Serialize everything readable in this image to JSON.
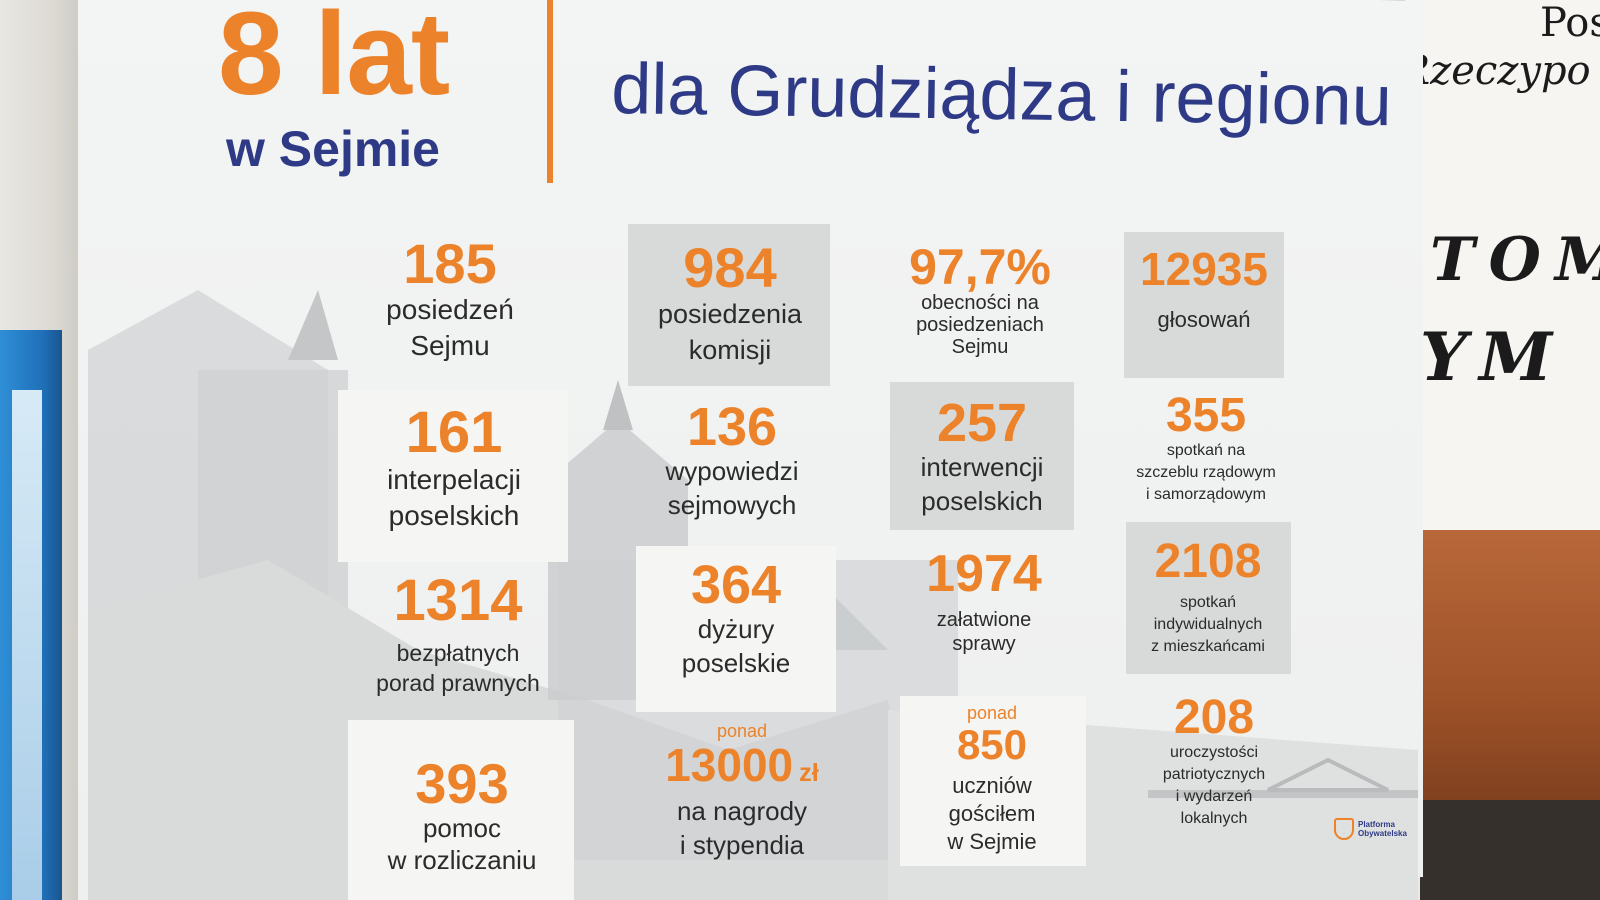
{
  "header": {
    "years": "8 lat",
    "where": "w Sejmie",
    "headline": "dla Grudziądza i regionu"
  },
  "background_sign": {
    "line1": "Pos",
    "line2": "Rzeczypo",
    "line3": "TOM",
    "line4": "YM"
  },
  "stats": [
    {
      "value": "185",
      "label1": "posiedzeń",
      "label2": "Sejmu"
    },
    {
      "value": "984",
      "label1": "posiedzenia",
      "label2": "komisji"
    },
    {
      "value": "97,7%",
      "label1": "obecności na",
      "label2": "posiedzeniach",
      "label3": "Sejmu"
    },
    {
      "value": "12935",
      "label1": "głosowań"
    },
    {
      "value": "161",
      "label1": "interpelacji",
      "label2": "poselskich"
    },
    {
      "value": "136",
      "label1": "wypowiedzi",
      "label2": "sejmowych"
    },
    {
      "value": "257",
      "label1": "interwencji",
      "label2": "poselskich"
    },
    {
      "value": "355",
      "label1": "spotkań na",
      "label2": "szczeblu rządowym",
      "label3": "i samorządowym"
    },
    {
      "value": "1314",
      "label1": "bezpłatnych",
      "label2": "porad prawnych"
    },
    {
      "value": "364",
      "label1": "dyżury",
      "label2": "poselskie"
    },
    {
      "value": "1974",
      "label1": "załatwione",
      "label2": "sprawy"
    },
    {
      "value": "2108",
      "label1": "spotkań",
      "label2": "indywidualnych",
      "label3": "z mieszkańcami"
    },
    {
      "value": "393",
      "label1": "pomoc",
      "label2": "w rozliczaniu"
    },
    {
      "prefix": "ponad",
      "value": "13000",
      "unit": "zł",
      "label1": "na nagrody",
      "label2": "i stypendia"
    },
    {
      "prefix": "ponad",
      "value": "850",
      "label1": "uczniów",
      "label2": "gościłem",
      "label3": "w Sejmie"
    },
    {
      "value": "208",
      "label1": "uroczystości",
      "label2": "patriotycznych",
      "label3": "i wydarzeń",
      "label4": "lokalnych"
    }
  ],
  "logo": {
    "line1": "Platforma",
    "line2": "Obywatelska"
  },
  "colors": {
    "orange": "#ec8229",
    "navy": "#2e3a86"
  }
}
